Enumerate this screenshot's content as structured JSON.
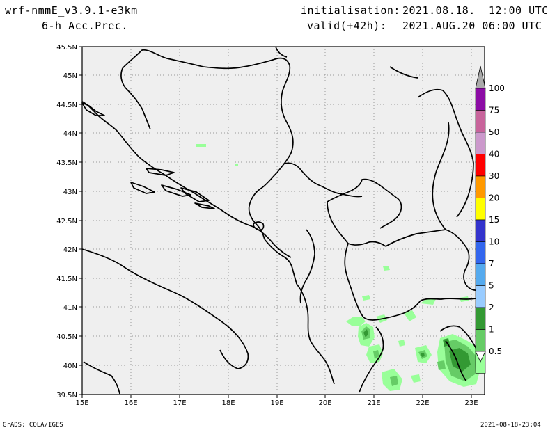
{
  "header": {
    "model": "wrf-nmmE_v3.9.1-e3km",
    "variable": "6-h Acc.Prec.",
    "init_label": "initialisation:",
    "init_value": "2021.08.18.  12:00 UTC",
    "valid_label": "valid(+42h):",
    "valid_value": "2021.AUG.20 06:00 UTC"
  },
  "footer": {
    "left": "GrADS: COLA/IGES",
    "right": "2021-08-18-23:04"
  },
  "map": {
    "lat_ticks": [
      "45.5N",
      "45N",
      "44.5N",
      "44N",
      "43.5N",
      "43N",
      "42.5N",
      "42N",
      "41.5N",
      "41N",
      "40.5N",
      "40N",
      "39.5N"
    ],
    "lon_ticks": [
      "15E",
      "16E",
      "17E",
      "18E",
      "19E",
      "20E",
      "21E",
      "22E",
      "23E"
    ],
    "background_color": "#efefef",
    "coastline_color": "#000000"
  },
  "legend": {
    "labels": [
      "100",
      "75",
      "50",
      "40",
      "30",
      "20",
      "15",
      "10",
      "7",
      "5",
      "2",
      "1",
      "0.5"
    ],
    "colors": [
      "#8c0ca5",
      "#c8649b",
      "#cc99cc",
      "#ff0000",
      "#ff9900",
      "#ffff00",
      "#3333cc",
      "#3366ee",
      "#55aaee",
      "#99ccff",
      "#339933",
      "#66cc66",
      "#99ff99"
    ],
    "top_color": "#aaaaaa"
  }
}
